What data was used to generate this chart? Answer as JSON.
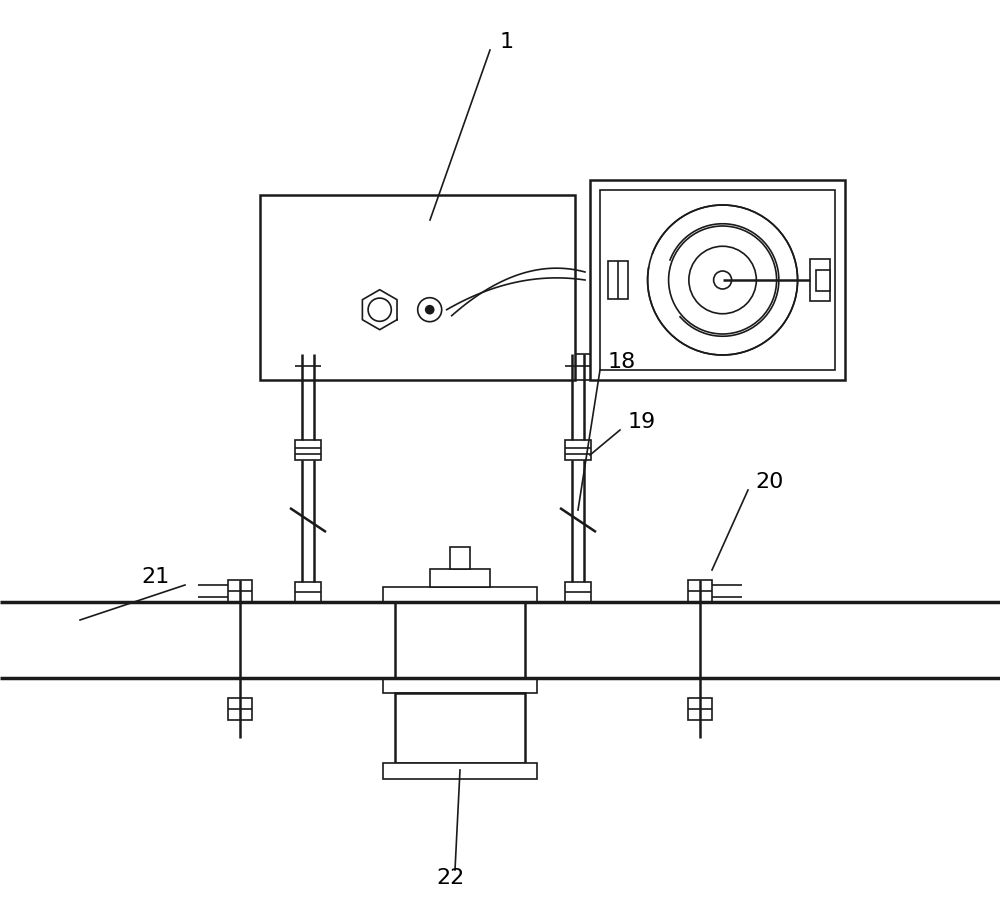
{
  "bg_color": "#ffffff",
  "line_color": "#1a1a1a",
  "label_color": "#000000",
  "fig_width": 10.0,
  "fig_height": 9.06,
  "dpi": 100
}
